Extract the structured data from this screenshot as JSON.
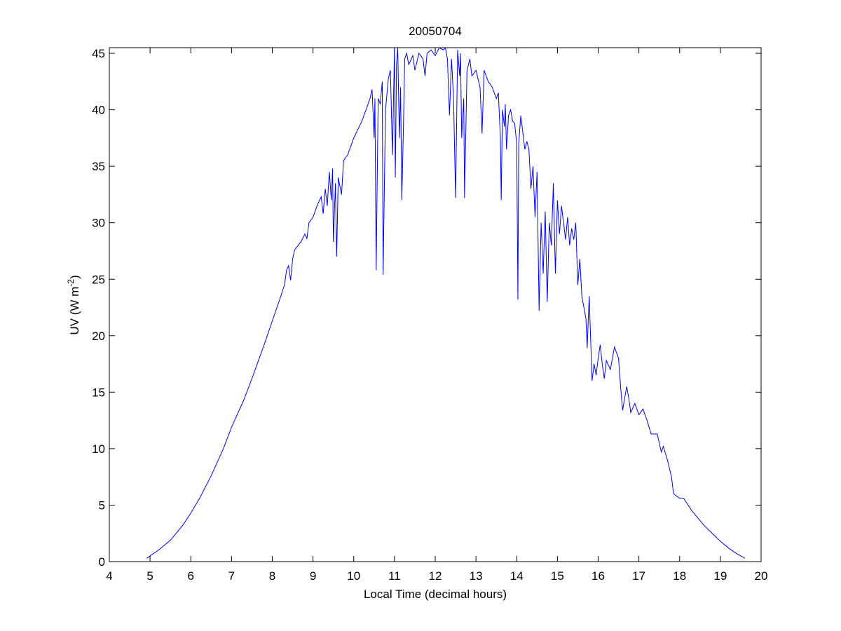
{
  "chart_data": {
    "type": "line",
    "title": "20050704",
    "xlabel": "Local Time (decimal hours)",
    "ylabel": {
      "text": "UV (W m",
      "superscript": "-2",
      "suffix": ")"
    },
    "xlim": [
      4,
      20
    ],
    "ylim": [
      0,
      45.5
    ],
    "xticks": [
      4,
      5,
      6,
      7,
      8,
      9,
      10,
      11,
      12,
      13,
      14,
      15,
      16,
      17,
      18,
      19,
      20
    ],
    "yticks": [
      0,
      5,
      10,
      15,
      20,
      25,
      30,
      35,
      40,
      45
    ],
    "series": [
      {
        "color": "#0000ff",
        "x": [
          4.92,
          5.2,
          5.5,
          5.8,
          6.0,
          6.2,
          6.5,
          6.8,
          7.0,
          7.3,
          7.5,
          7.8,
          8.0,
          8.2,
          8.3,
          8.35,
          8.4,
          8.45,
          8.5,
          8.55,
          8.7,
          8.8,
          8.85,
          8.9,
          9.0,
          9.1,
          9.2,
          9.25,
          9.3,
          9.35,
          9.4,
          9.45,
          9.48,
          9.5,
          9.55,
          9.58,
          9.62,
          9.7,
          9.75,
          9.85,
          10.0,
          10.2,
          10.4,
          10.45,
          10.5,
          10.52,
          10.55,
          10.6,
          10.65,
          10.7,
          10.72,
          10.78,
          10.85,
          10.9,
          10.95,
          11.0,
          11.02,
          11.05,
          11.08,
          11.12,
          11.15,
          11.18,
          11.22,
          11.25,
          11.3,
          11.35,
          11.45,
          11.5,
          11.6,
          11.7,
          11.75,
          11.8,
          11.9,
          12.0,
          12.1,
          12.2,
          12.25,
          12.3,
          12.35,
          12.4,
          12.45,
          12.5,
          12.55,
          12.6,
          12.62,
          12.65,
          12.7,
          12.72,
          12.78,
          12.85,
          12.9,
          13.0,
          13.1,
          13.15,
          13.2,
          13.3,
          13.4,
          13.5,
          13.55,
          13.6,
          13.62,
          13.65,
          13.7,
          13.72,
          13.75,
          13.8,
          13.85,
          13.9,
          13.95,
          14.0,
          14.03,
          14.05,
          14.1,
          14.15,
          14.2,
          14.25,
          14.3,
          14.35,
          14.4,
          14.45,
          14.5,
          14.55,
          14.6,
          14.65,
          14.7,
          14.75,
          14.8,
          14.85,
          14.9,
          14.95,
          15.0,
          15.05,
          15.1,
          15.2,
          15.25,
          15.3,
          15.35,
          15.4,
          15.45,
          15.5,
          15.55,
          15.6,
          15.7,
          15.73,
          15.78,
          15.85,
          15.9,
          15.95,
          16.0,
          16.05,
          16.1,
          16.15,
          16.2,
          16.3,
          16.4,
          16.5,
          16.55,
          16.6,
          16.7,
          16.75,
          16.8,
          16.9,
          17.0,
          17.1,
          17.2,
          17.3,
          17.45,
          17.55,
          17.6,
          17.7,
          17.8,
          17.85,
          18.0,
          18.1,
          18.3,
          18.6,
          18.8,
          19.0,
          19.2,
          19.4,
          19.6
        ],
        "values": [
          0.3,
          1.0,
          1.9,
          3.2,
          4.3,
          5.5,
          7.6,
          10.0,
          11.9,
          14.3,
          16.2,
          19.2,
          21.3,
          23.4,
          24.5,
          25.8,
          26.2,
          24.9,
          26.8,
          27.6,
          28.3,
          29.0,
          28.6,
          30.0,
          30.5,
          31.5,
          32.3,
          30.8,
          33.0,
          31.5,
          34.5,
          32.0,
          34.8,
          28.3,
          33.5,
          27.0,
          34.0,
          32.5,
          35.5,
          36.0,
          37.5,
          39.0,
          41.0,
          41.8,
          37.5,
          41.0,
          25.8,
          41.0,
          40.5,
          42.5,
          25.4,
          40.0,
          42.8,
          43.5,
          36.0,
          45.5,
          34.0,
          44.0,
          45.5,
          37.5,
          42.0,
          32.0,
          38.5,
          44.5,
          45.0,
          44.0,
          44.8,
          43.5,
          45.0,
          44.5,
          43.0,
          45.0,
          45.3,
          44.8,
          45.5,
          45.3,
          45.5,
          44.5,
          39.5,
          44.5,
          41.0,
          32.2,
          45.3,
          43.0,
          45.0,
          37.5,
          41.0,
          32.2,
          43.5,
          44.5,
          43.0,
          43.5,
          42.0,
          37.9,
          43.5,
          42.5,
          42.0,
          41.0,
          41.5,
          37.5,
          32.0,
          40.0,
          38.5,
          40.5,
          36.5,
          39.5,
          40.0,
          39.0,
          38.8,
          37.0,
          23.2,
          37.0,
          39.5,
          38.0,
          36.5,
          37.2,
          36.5,
          33.0,
          35.0,
          30.5,
          34.5,
          22.2,
          30.0,
          25.5,
          31.0,
          23.0,
          30.0,
          28.0,
          33.5,
          25.5,
          32.0,
          29.0,
          31.5,
          28.5,
          30.5,
          28.0,
          29.5,
          28.5,
          30.0,
          24.5,
          26.8,
          23.5,
          21.5,
          18.9,
          23.5,
          16.0,
          17.5,
          16.5,
          18.0,
          19.2,
          17.5,
          16.2,
          17.8,
          17.0,
          19.0,
          18.0,
          15.5,
          13.4,
          15.5,
          14.5,
          13.2,
          14.0,
          13.0,
          13.5,
          12.5,
          11.3,
          11.3,
          9.7,
          10.2,
          9.0,
          7.5,
          6.0,
          5.6,
          5.6,
          4.5,
          3.2,
          2.5,
          1.8,
          1.2,
          0.7,
          0.3
        ]
      }
    ]
  }
}
